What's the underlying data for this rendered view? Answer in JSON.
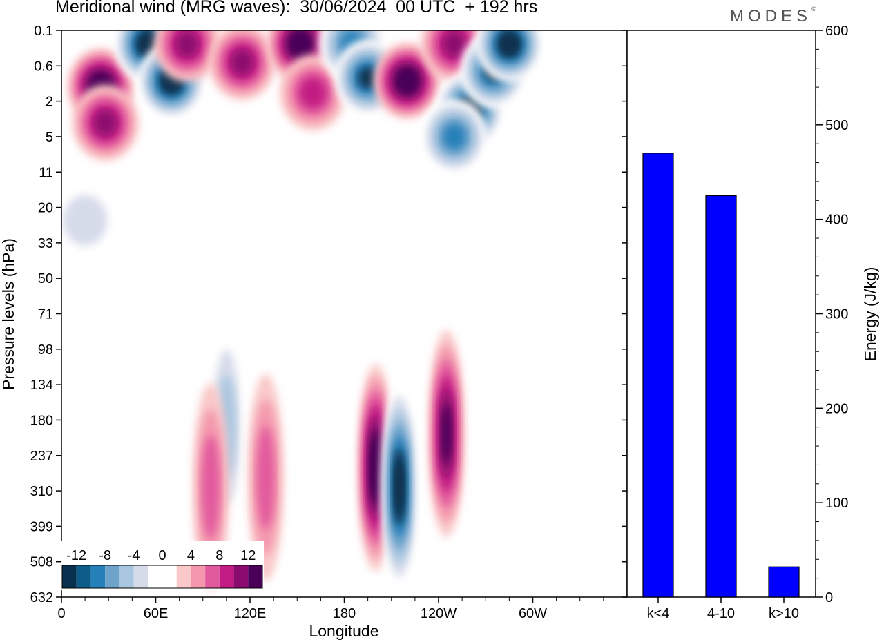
{
  "title": "Meridional wind (MRG waves):  30/06/2024  00 UTC  + 192 hrs",
  "logo": "MODES",
  "logo_mark": "©",
  "colors": {
    "scale": [
      "#08304f",
      "#0d5d8a",
      "#2680ba",
      "#6ea3cb",
      "#a9c6e0",
      "#d6dbea",
      "#ffffff",
      "#ffffff",
      "#f9c8c8",
      "#f497ad",
      "#e25a9e",
      "#c21b83",
      "#8c0b6e",
      "#4a0059"
    ],
    "bar": "#0000ff"
  },
  "chart_data": [
    {
      "type": "heatmap",
      "title": "Meridional wind (MRG waves):  30/06/2024  00 UTC  + 192 hrs",
      "xlabel": "Longitude",
      "ylabel": "Pressure levels (hPa)",
      "x_ticks": [
        "0",
        "60E",
        "120E",
        "180",
        "120W",
        "60W"
      ],
      "y_ticks": [
        "0.1",
        "0.6",
        "2",
        "5",
        "11",
        "20",
        "33",
        "50",
        "71",
        "98",
        "134",
        "180",
        "237",
        "310",
        "399",
        "508",
        "632"
      ],
      "colorbar_labels": [
        "-12",
        "-8",
        "-4",
        "0",
        "4",
        "8",
        "12"
      ],
      "features": [
        {
          "lon": 25,
          "level": 1.2,
          "value": 14
        },
        {
          "lon": 28,
          "level": 3.5,
          "value": 9
        },
        {
          "lon": 55,
          "level": 0.2,
          "value": -13
        },
        {
          "lon": 70,
          "level": 1.0,
          "value": -13
        },
        {
          "lon": 80,
          "level": 0.2,
          "value": 10
        },
        {
          "lon": 115,
          "level": 0.5,
          "value": 9
        },
        {
          "lon": 152,
          "level": 0.2,
          "value": 13
        },
        {
          "lon": 160,
          "level": 1.5,
          "value": 8
        },
        {
          "lon": 185,
          "level": 0.2,
          "value": -9
        },
        {
          "lon": 195,
          "level": 0.9,
          "value": -12
        },
        {
          "lon": 220,
          "level": 1.0,
          "value": 14
        },
        {
          "lon": 250,
          "level": 0.2,
          "value": 10
        },
        {
          "lon": 260,
          "level": 2.5,
          "value": -13
        },
        {
          "lon": 275,
          "level": 0.7,
          "value": -11
        },
        {
          "lon": 285,
          "level": 0.2,
          "value": -14
        },
        {
          "lon": 250,
          "level": 5.0,
          "value": -9
        },
        {
          "lon": 15,
          "level": 24,
          "value": -4
        },
        {
          "lon": 200,
          "level": 260,
          "value": 13
        },
        {
          "lon": 215,
          "level": 300,
          "value": -14
        },
        {
          "lon": 245,
          "level": 200,
          "value": 12
        },
        {
          "lon": 105,
          "level": 190,
          "value": -6
        },
        {
          "lon": 130,
          "level": 280,
          "value": 5
        },
        {
          "lon": 95,
          "level": 300,
          "value": 5
        }
      ]
    },
    {
      "type": "bar",
      "categories": [
        "k<4",
        "4-10",
        "k>10"
      ],
      "values": [
        470,
        425,
        32
      ],
      "ylabel": "Energy (J/kg)",
      "ylim": [
        0,
        600
      ],
      "y_ticks": [
        0,
        100,
        200,
        300,
        400,
        500,
        600
      ]
    }
  ]
}
